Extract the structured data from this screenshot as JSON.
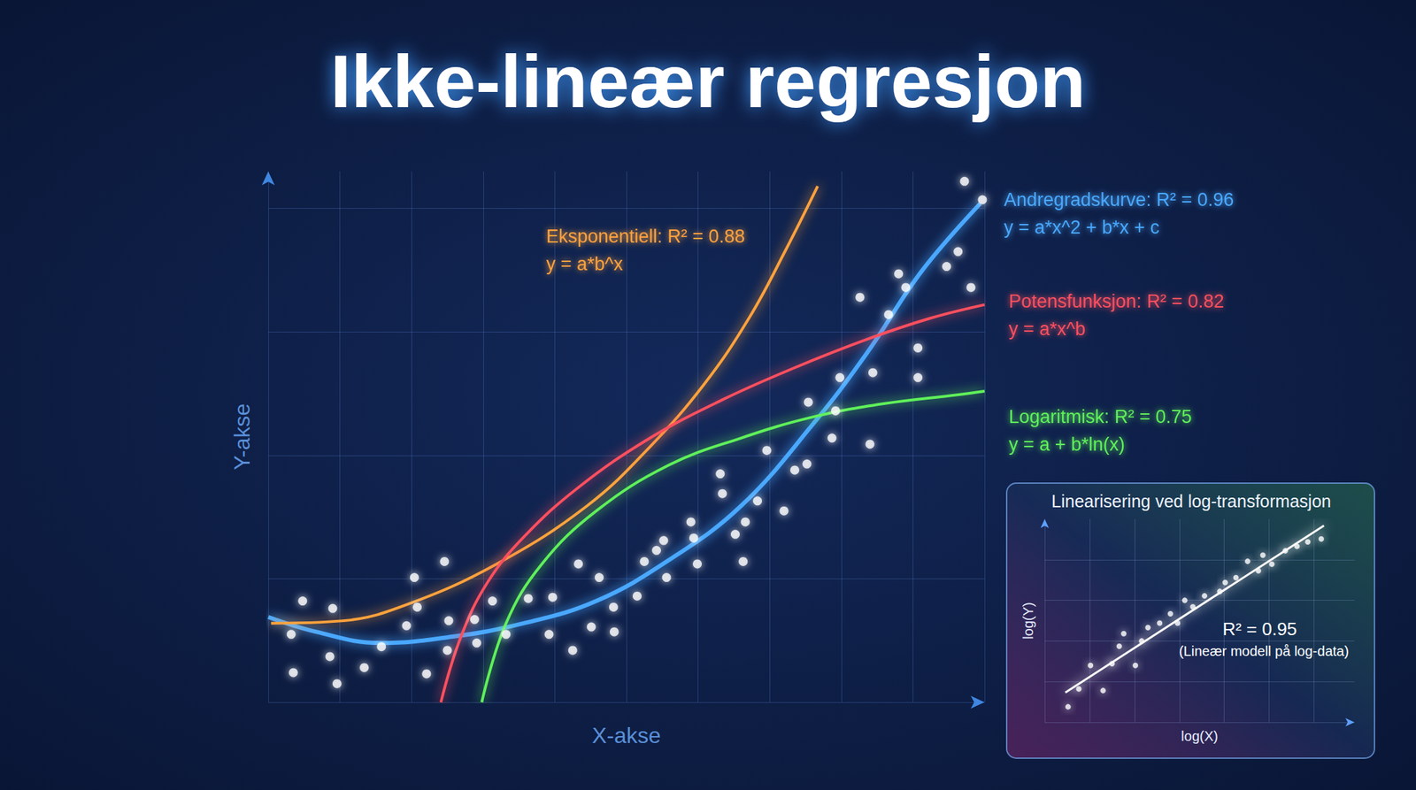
{
  "chart_data": [
    {
      "type": "scatter",
      "title": "Ikke-lineær regresjon",
      "x_label": "X-akse",
      "y_label": "Y-akse",
      "xlim": [
        0,
        10
      ],
      "ylim": [
        0,
        4.3
      ],
      "xticks": [
        0,
        1,
        2,
        3,
        4,
        5,
        6,
        7,
        8,
        9,
        10
      ],
      "yticks": [
        0,
        1,
        2,
        3,
        4
      ],
      "grid": true,
      "tick_labels": false,
      "series": [
        {
          "type": "scatter",
          "color": "#ffffff",
          "x": [
            0.32,
            0.48,
            0.35,
            0.9,
            0.86,
            0.96,
            1.34,
            1.58,
            1.93,
            2.08,
            2.21,
            2.04,
            2.46,
            2.52,
            2.5,
            2.88,
            2.91,
            3.13,
            3.32,
            3.63,
            3.92,
            3.97,
            4.25,
            4.51,
            4.33,
            4.62,
            4.82,
            4.83,
            5.15,
            5.25,
            5.42,
            5.52,
            5.56,
            5.9,
            5.94,
            5.99,
            6.31,
            6.34,
            6.52,
            6.63,
            6.66,
            6.83,
            6.96,
            7.2,
            7.35,
            7.52,
            7.54,
            7.87,
            7.92,
            7.98,
            8.26,
            8.4,
            8.44,
            8.66,
            8.8,
            8.9,
            9.07,
            9.07,
            9.47,
            9.81,
            9.63,
            9.72,
            9.97
          ],
          "values": [
            0.55,
            0.82,
            0.24,
            0.76,
            0.37,
            0.15,
            0.28,
            0.45,
            0.62,
            0.77,
            0.23,
            1.01,
            1.14,
            0.66,
            0.42,
            0.67,
            0.48,
            0.82,
            0.55,
            0.84,
            0.55,
            0.85,
            0.42,
            0.61,
            1.12,
            1.01,
            0.77,
            0.57,
            0.86,
            1.14,
            1.23,
            1.31,
            1.01,
            1.46,
            1.33,
            1.12,
            1.85,
            1.69,
            1.36,
            1.14,
            1.46,
            1.63,
            2.04,
            1.55,
            1.88,
            1.93,
            2.43,
            2.14,
            2.36,
            2.63,
            3.28,
            2.09,
            2.67,
            3.14,
            3.47,
            3.36,
            2.87,
            2.63,
            3.53,
            3.36,
            3.65,
            4.22,
            4.07
          ]
        },
        {
          "type": "line",
          "name": "Andregradskurve: R² = 0.96",
          "formula": "y = a*x^2 + b*x + c",
          "color": "#4aa8ff",
          "x": [
            0,
            0.67,
            1.55,
            2.56,
            3.57,
            4.58,
            5.59,
            6.6,
            7.6,
            8.36,
            9.12,
            9.94
          ],
          "values": [
            0.69,
            0.57,
            0.48,
            0.53,
            0.64,
            0.82,
            1.15,
            1.59,
            2.25,
            2.83,
            3.49,
            4.04
          ]
        },
        {
          "type": "line",
          "name": "Eksponentiell: R² = 0.88",
          "formula": "y = a*b^x",
          "color": "#ffa23c",
          "x": [
            0.04,
            1.05,
            1.93,
            3.19,
            4.45,
            5.33,
            6.09,
            6.72,
            7.23,
            7.67
          ],
          "values": [
            0.64,
            0.66,
            0.79,
            1.12,
            1.59,
            2.07,
            2.58,
            3.12,
            3.67,
            4.18
          ]
        },
        {
          "type": "line",
          "name": "Potensfunksjon: R² = 0.82",
          "formula": "y = a*x^b",
          "color": "#ff4f5e",
          "x": [
            2.41,
            2.69,
            3.06,
            3.57,
            4.33,
            5.33,
            6.34,
            7.35,
            8.36,
            9.24,
            10.0
          ],
          "values": [
            0,
            0.53,
            0.97,
            1.34,
            1.74,
            2.14,
            2.45,
            2.71,
            2.94,
            3.11,
            3.22
          ]
        },
        {
          "type": "line",
          "name": "Logaritmisk: R² = 0.75",
          "formula": "y = a + b*ln(x)",
          "color": "#5ef05a",
          "x": [
            2.98,
            3.32,
            3.82,
            4.58,
            5.59,
            6.6,
            7.6,
            8.61,
            9.62,
            10.0
          ],
          "values": [
            0,
            0.64,
            1.12,
            1.55,
            1.92,
            2.14,
            2.31,
            2.42,
            2.49,
            2.52
          ]
        }
      ]
    },
    {
      "type": "scatter",
      "title": "Linearisering ved log-transformasjon",
      "x_label": "log(X)",
      "y_label": "log(Y)",
      "xlim": [
        0,
        6.9
      ],
      "ylim": [
        0,
        5
      ],
      "xticks": [
        0,
        1,
        2,
        3,
        4,
        5,
        6
      ],
      "yticks": [
        0,
        1,
        2,
        3,
        4
      ],
      "grid": true,
      "tick_labels": false,
      "annotations": [
        {
          "text": "R² = 0.95"
        },
        {
          "text": "(Lineær modell på log-data)"
        }
      ],
      "series": [
        {
          "type": "scatter",
          "color": "#ffffff",
          "x": [
            0.52,
            0.76,
            1.02,
            1.3,
            1.5,
            1.66,
            1.76,
            2.02,
            2.16,
            2.3,
            2.56,
            2.8,
            2.96,
            3.12,
            3.3,
            3.56,
            3.9,
            4.02,
            4.26,
            4.52,
            4.76,
            4.86,
            5.06,
            5.36,
            5.62,
            5.86,
            6.16
          ],
          "values": [
            0.38,
            0.82,
            1.4,
            0.78,
            1.44,
            1.87,
            2.18,
            1.4,
            2.0,
            2.33,
            2.44,
            2.67,
            2.44,
            3.0,
            2.84,
            3.11,
            3.22,
            3.44,
            3.56,
            3.96,
            3.73,
            4.11,
            3.89,
            4.22,
            4.33,
            4.44,
            4.51
          ]
        },
        {
          "type": "line",
          "color": "#ffffff",
          "x": [
            0.46,
            6.22
          ],
          "values": [
            0.73,
            4.84
          ]
        }
      ]
    }
  ]
}
